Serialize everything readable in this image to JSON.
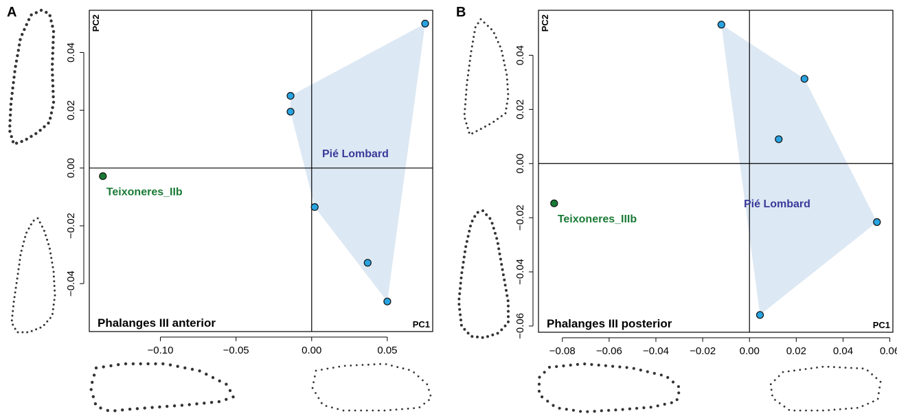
{
  "colors": {
    "pie_lombard_point": "#29a3e0",
    "pie_lombard_hull": "#dce8f3",
    "pie_lombard_label": "#3a3a9a",
    "teixoneres_point": "#1a7a35",
    "teixoneres_label": "#1a7a35"
  },
  "chart_data": [
    {
      "panel": "A",
      "type": "scatter",
      "title": "Phalanges III anterior",
      "xlabel": "PC1",
      "ylabel": "PC2",
      "xlim": [
        -0.147,
        0.08
      ],
      "ylim": [
        -0.0566,
        0.0546
      ],
      "xticks": [
        -0.1,
        -0.05,
        0.0,
        0.05
      ],
      "xtick_labels": [
        "−0.10",
        "−0.05",
        "0.00",
        "0.05"
      ],
      "yticks": [
        -0.04,
        -0.02,
        0.0,
        0.02,
        0.04
      ],
      "ytick_labels": [
        "−0.04",
        "−0.02",
        "0.00",
        "0.02",
        "0.04"
      ],
      "reference_lines": {
        "x": 0,
        "y": 0
      },
      "grid": false,
      "series": [
        {
          "name": "Pié Lombard",
          "hull": true,
          "points": [
            {
              "x": -0.014,
              "y": 0.025
            },
            {
              "x": -0.014,
              "y": 0.0195
            },
            {
              "x": 0.075,
              "y": 0.05
            },
            {
              "x": 0.002,
              "y": -0.0135
            },
            {
              "x": 0.037,
              "y": -0.0328
            },
            {
              "x": 0.05,
              "y": -0.0462
            }
          ]
        },
        {
          "name": "Teixoneres_IIb",
          "hull": false,
          "points": [
            {
              "x": -0.138,
              "y": -0.0028
            }
          ]
        }
      ]
    },
    {
      "panel": "B",
      "type": "scatter",
      "title": "Phalanges III posterior",
      "xlabel": "PC1",
      "ylabel": "PC2",
      "xlim": [
        -0.0902,
        0.0613
      ],
      "ylim": [
        -0.0623,
        0.0566
      ],
      "xticks": [
        -0.08,
        -0.06,
        -0.04,
        -0.02,
        0.0,
        0.02,
        0.04,
        0.06
      ],
      "xtick_labels": [
        "−0.08",
        "−0.06",
        "−0.04",
        "−0.02",
        "0.00",
        "0.02",
        "0.04",
        "0.06"
      ],
      "yticks": [
        -0.06,
        -0.04,
        -0.02,
        0.0,
        0.02,
        0.04
      ],
      "ytick_labels": [
        "−0.06",
        "−0.04",
        "−0.02",
        "0.00",
        "0.02",
        "0.04"
      ],
      "reference_lines": {
        "x": 0,
        "y": 0
      },
      "grid": false,
      "series": [
        {
          "name": "Pié Lombard",
          "hull": true,
          "points": [
            {
              "x": -0.012,
              "y": 0.0513
            },
            {
              "x": 0.0235,
              "y": 0.0313
            },
            {
              "x": 0.0125,
              "y": 0.009
            },
            {
              "x": 0.0545,
              "y": -0.0216
            },
            {
              "x": 0.0045,
              "y": -0.0559
            }
          ]
        },
        {
          "name": "Teixoneres_IIIb",
          "hull": false,
          "points": [
            {
              "x": -0.0835,
              "y": -0.0147
            }
          ]
        }
      ]
    }
  ]
}
